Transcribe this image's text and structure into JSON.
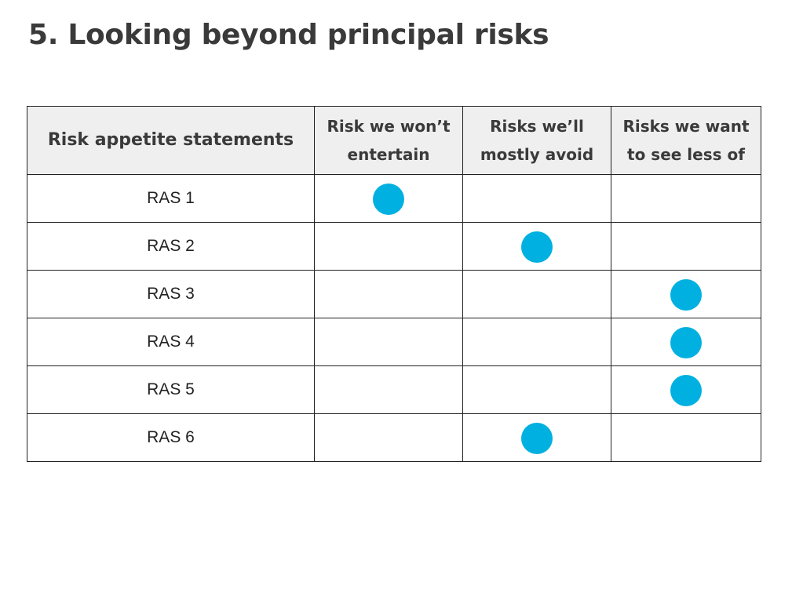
{
  "title": "5. Looking beyond principal risks",
  "table": {
    "headers": [
      "Risk appetite statements",
      "Risk we won’t entertain",
      "Risks we’ll mostly avoid",
      "Risks we want to see less of"
    ],
    "rows": [
      {
        "label": "RAS 1",
        "marked_column": 1
      },
      {
        "label": "RAS 2",
        "marked_column": 2
      },
      {
        "label": "RAS 3",
        "marked_column": 3
      },
      {
        "label": "RAS 4",
        "marked_column": 3
      },
      {
        "label": "RAS 5",
        "marked_column": 3
      },
      {
        "label": "RAS 6",
        "marked_column": 2
      }
    ]
  },
  "colors": {
    "dot": "#00b0e0",
    "header_background": "#efefef"
  }
}
